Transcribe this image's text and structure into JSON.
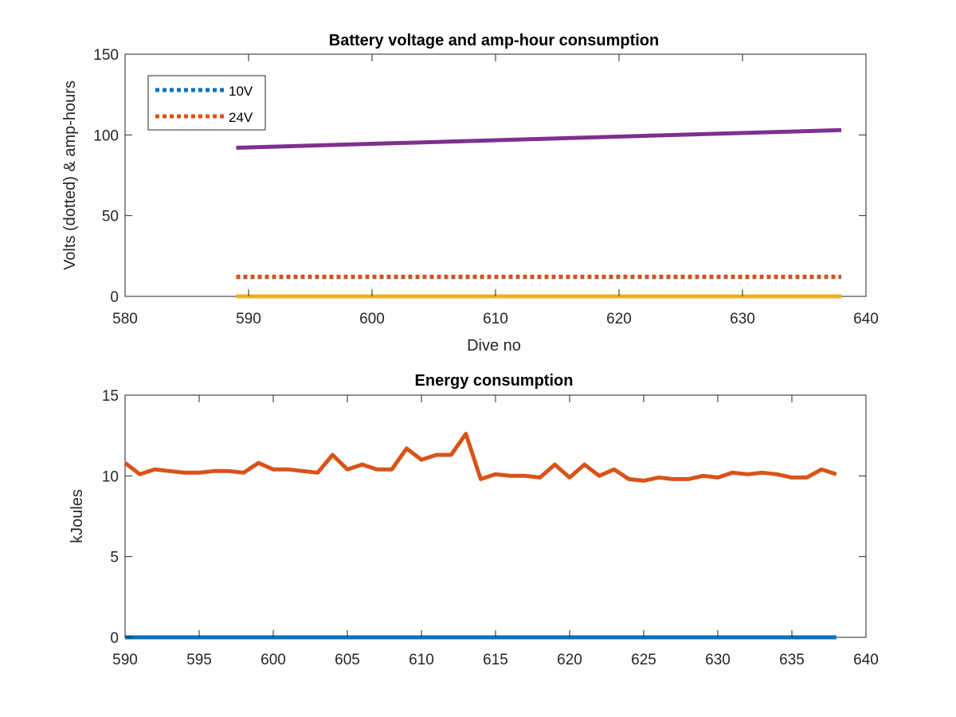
{
  "chart_data": [
    {
      "type": "line",
      "title": "Battery voltage and amp-hour consumption",
      "xlabel": "Dive no",
      "ylabel": "Volts (dotted) & amp-hours",
      "xlim": [
        580,
        640
      ],
      "ylim": [
        0,
        150
      ],
      "xticks": [
        580,
        590,
        600,
        610,
        620,
        630,
        640
      ],
      "yticks": [
        0,
        50,
        100,
        150
      ],
      "grid": false,
      "legend": "top-left",
      "series": [
        {
          "name": "10V",
          "color": "#0072BD",
          "style": "dotted",
          "x": [
            589,
            638
          ],
          "y": [
            12.0,
            12.0
          ]
        },
        {
          "name": "24V",
          "color": "#D95319",
          "style": "dotted",
          "x": [
            589,
            638
          ],
          "y": [
            12.2,
            12.2
          ]
        },
        {
          "name": "",
          "color": "#7E2F8E",
          "style": "solid",
          "x": [
            589,
            638
          ],
          "y": [
            92,
            103
          ]
        },
        {
          "name": "",
          "color": "#EDB120",
          "style": "solid",
          "x": [
            589,
            638
          ],
          "y": [
            0,
            0
          ]
        }
      ]
    },
    {
      "type": "line",
      "title": "Energy consumption",
      "xlabel": "",
      "ylabel": "kJoules",
      "xlim": [
        590,
        640
      ],
      "ylim": [
        0,
        15
      ],
      "xticks": [
        590,
        595,
        600,
        605,
        610,
        615,
        620,
        625,
        630,
        635,
        640
      ],
      "yticks": [
        0,
        5,
        10,
        15
      ],
      "grid": false,
      "series": [
        {
          "name": "",
          "color": "#0072BD",
          "style": "solid",
          "x": [
            590,
            638
          ],
          "y": [
            0,
            0
          ]
        },
        {
          "name": "",
          "color": "#D95319",
          "style": "solid",
          "x": [
            590,
            591,
            592,
            593,
            594,
            595,
            596,
            597,
            598,
            599,
            600,
            601,
            602,
            603,
            604,
            605,
            606,
            607,
            608,
            609,
            610,
            611,
            612,
            613,
            614,
            615,
            616,
            617,
            618,
            619,
            620,
            621,
            622,
            623,
            624,
            625,
            626,
            627,
            628,
            629,
            630,
            631,
            632,
            633,
            634,
            635,
            636,
            637,
            638
          ],
          "y": [
            10.8,
            10.1,
            10.4,
            10.3,
            10.2,
            10.2,
            10.3,
            10.3,
            10.2,
            10.8,
            10.4,
            10.4,
            10.3,
            10.2,
            11.3,
            10.4,
            10.7,
            10.4,
            10.4,
            11.7,
            11.0,
            11.3,
            11.3,
            12.6,
            9.8,
            10.1,
            10.0,
            10.0,
            9.9,
            10.7,
            9.9,
            10.7,
            10.0,
            10.4,
            9.8,
            9.7,
            9.9,
            9.8,
            9.8,
            10.0,
            9.9,
            10.2,
            10.1,
            10.2,
            10.1,
            9.9,
            9.9,
            10.4,
            10.1
          ]
        }
      ]
    }
  ]
}
